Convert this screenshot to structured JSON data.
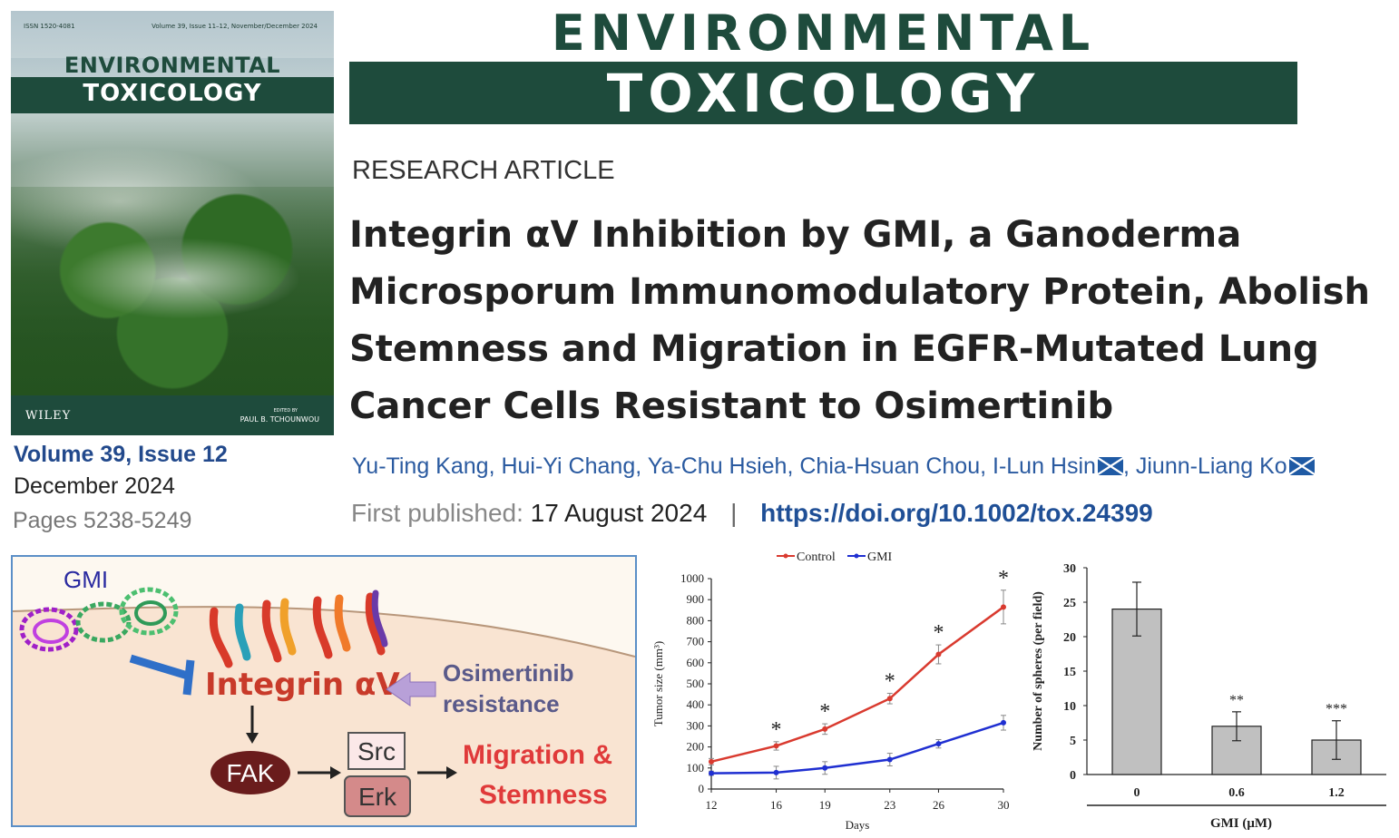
{
  "cover": {
    "issn": "ISSN 1520-4081",
    "volume_line": "Volume 39, Issue 11–12, November/December 2024",
    "title_line1": "ENVIRONMENTAL",
    "title_line2": "TOXICOLOGY",
    "publisher": "WILEY",
    "edited_by": "EDITED BY",
    "editor": "PAUL B. TCHOUNWOU"
  },
  "issue": {
    "volume_issue": "Volume 39, Issue 12",
    "date": "December 2024",
    "pages": "Pages 5238-5249"
  },
  "masthead": {
    "line1": "ENVIRONMENTAL",
    "line2": "TOXICOLOGY"
  },
  "article": {
    "type": "RESEARCH ARTICLE",
    "title": "Integrin αV Inhibition by GMI, a Ganoderma Microsporum Immunomodulatory Protein, Abolish Stemness and Migration in EGFR-Mutated Lung Cancer Cells Resistant to Osimertinib",
    "authors": [
      {
        "name": "Yu-Ting Kang",
        "corresponding": false
      },
      {
        "name": "Hui-Yi Chang",
        "corresponding": false
      },
      {
        "name": "Ya-Chu Hsieh",
        "corresponding": false
      },
      {
        "name": "Chia-Hsuan Chou",
        "corresponding": false
      },
      {
        "name": "I-Lun Hsin",
        "corresponding": true
      },
      {
        "name": "Jiunn-Liang Ko",
        "corresponding": true
      }
    ],
    "first_published_label": "First published:",
    "first_published_date": "17 August 2024",
    "separator": "|",
    "doi": "https://doi.org/10.1002/tox.24399"
  },
  "graphical_abstract": {
    "gmi_label": "GMI",
    "integrin_label": "Integrin αV",
    "osimertinib_line1": "Osimertinib",
    "osimertinib_line2": "resistance",
    "fak_label": "FAK",
    "src_label": "Src",
    "erk_label": "Erk",
    "outcome_line1": "Migration &",
    "outcome_line2": "Stemness"
  },
  "chart_data": [
    {
      "type": "line",
      "xlabel": "Days",
      "ylabel": "Tumor size (mm³)",
      "x": [
        12,
        16,
        19,
        23,
        26,
        30
      ],
      "xticks": [
        "12",
        "16",
        "19",
        "23",
        "26",
        "30"
      ],
      "ylim": [
        0,
        1000
      ],
      "yticks": [
        0,
        100,
        200,
        300,
        400,
        500,
        600,
        700,
        800,
        900,
        1000
      ],
      "legend_position": "top",
      "series": [
        {
          "name": "Control",
          "color": "#d93a2f",
          "values": [
            130,
            205,
            285,
            430,
            640,
            865
          ],
          "errors": [
            15,
            20,
            25,
            25,
            45,
            80
          ]
        },
        {
          "name": "GMI",
          "color": "#1f2fd1",
          "values": [
            75,
            78,
            100,
            140,
            215,
            315
          ],
          "errors": [
            10,
            30,
            30,
            30,
            20,
            35
          ]
        }
      ],
      "significance": [
        "",
        "*",
        "*",
        "*",
        "*",
        "*"
      ]
    },
    {
      "type": "bar",
      "xlabel": "GMI (μM)",
      "ylabel": "Number of spheres (per field)",
      "categories": [
        "0",
        "0.6",
        "1.2"
      ],
      "values": [
        24,
        7,
        5
      ],
      "errors": [
        3.9,
        2.1,
        2.8
      ],
      "significance": [
        "",
        "**",
        "***"
      ],
      "ylim": [
        0,
        30
      ],
      "yticks": [
        0,
        5,
        10,
        15,
        20,
        25,
        30
      ],
      "bar_color": "#c0c0c0"
    }
  ]
}
